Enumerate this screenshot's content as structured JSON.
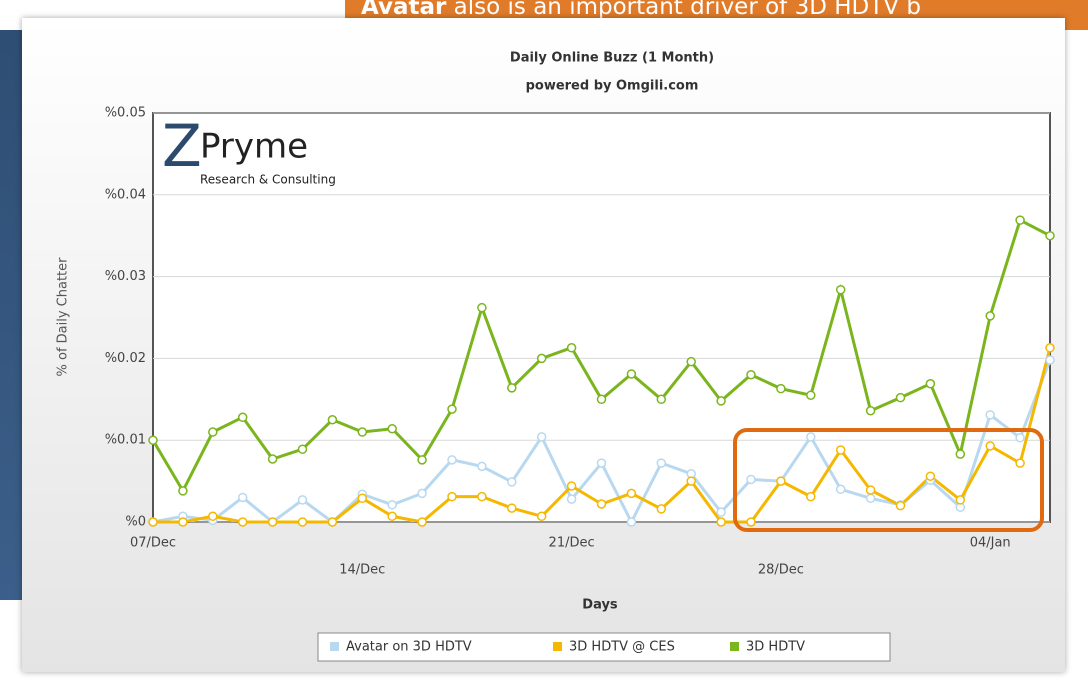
{
  "banner": {
    "bold": "Avatar",
    "text": "also is an important driver of 3D HDTV b"
  },
  "logo": {
    "name": "Pryme",
    "tagline": "Research & Consulting"
  },
  "chart_data": {
    "type": "line",
    "title": "Daily Online Buzz  (1 Month)",
    "subtitle": "powered by Omgili.com",
    "ylabel": "% of Daily Chatter",
    "xlabel": "Days",
    "categories": [
      "07/Dec",
      null,
      null,
      null,
      null,
      null,
      null,
      "14/Dec",
      null,
      null,
      null,
      null,
      null,
      null,
      "21/Dec",
      null,
      null,
      null,
      null,
      null,
      null,
      "28/Dec",
      null,
      null,
      null,
      null,
      null,
      null,
      "04/Jan",
      null,
      null
    ],
    "ylim": [
      0,
      0.05
    ],
    "yticks": [
      {
        "value": 0,
        "label": "%0"
      },
      {
        "value": 0.01,
        "label": "%0.01"
      },
      {
        "value": 0.02,
        "label": "%0.02"
      },
      {
        "value": 0.03,
        "label": "%0.03"
      },
      {
        "value": 0.04,
        "label": "%0.04"
      },
      {
        "value": 0.05,
        "label": "%0.05"
      }
    ],
    "grid": true,
    "legend": "bottom",
    "series": [
      {
        "name": "Avatar on 3D HDTV",
        "color": "#b8d8f0",
        "values": [
          0,
          0.0007,
          0.0002,
          0.003,
          0,
          0.0027,
          0,
          0.0034,
          0.0021,
          0.0035,
          0.0076,
          0.0068,
          0.0049,
          0.0104,
          0.0028,
          0.0072,
          0,
          0.0072,
          0.0059,
          0.0012,
          0.0052,
          0.005,
          0.0104,
          0.004,
          0.0029,
          0.0021,
          0.0051,
          0.0018,
          0.0131,
          0.0103,
          0.0198
        ]
      },
      {
        "name": "3D HDTV @ CES",
        "color": "#f5b800",
        "values": [
          0,
          0,
          0.0007,
          0,
          0,
          0,
          0,
          0.0029,
          0.0007,
          0,
          0.0031,
          0.0031,
          0.0017,
          0.0007,
          0.0044,
          0.0022,
          0.0035,
          0.0016,
          0.005,
          0,
          0,
          0.005,
          0.0031,
          0.0088,
          0.0039,
          0.002,
          0.0056,
          0.0027,
          0.0093,
          0.0072,
          0.0213
        ]
      },
      {
        "name": "3D HDTV",
        "color": "#7ab51d",
        "values": [
          0.01,
          0.0038,
          0.011,
          0.0128,
          0.0077,
          0.0089,
          0.0125,
          0.011,
          0.0114,
          0.0076,
          0.0138,
          0.0262,
          0.0164,
          0.02,
          0.0213,
          0.015,
          0.0181,
          0.015,
          0.0196,
          0.0148,
          0.018,
          0.0163,
          0.0155,
          0.0284,
          0.0136,
          0.0152,
          0.0169,
          0.0083,
          0.0252,
          0.0369,
          0.035
        ]
      }
    ]
  }
}
